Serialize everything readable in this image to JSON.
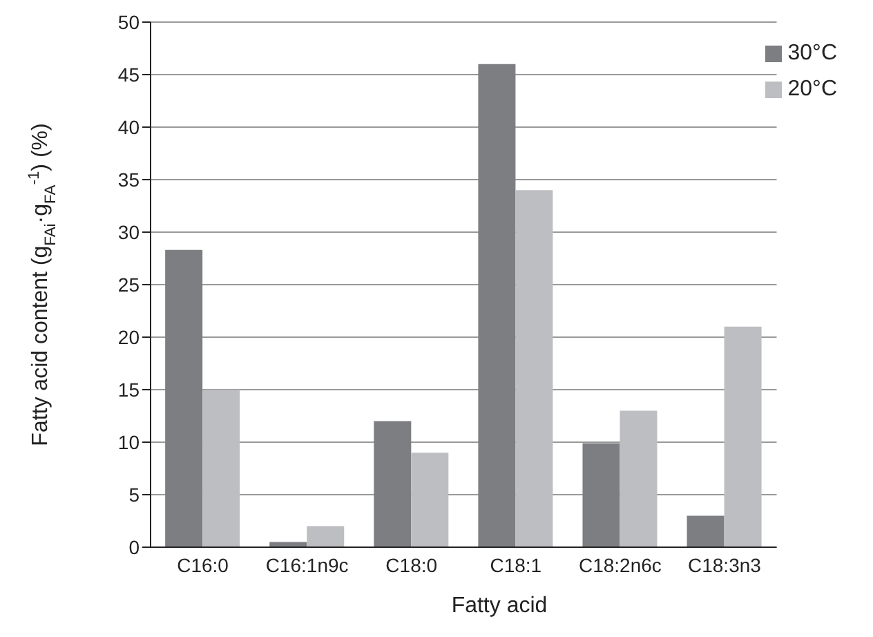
{
  "chart_data": {
    "type": "bar",
    "xlabel": "Fatty acid",
    "ylabel": "Fatty acid content (g$_{FAi}$·g$_{FA}$$^{-1}$) (%)",
    "categories": [
      "C16:0",
      "C16:1n9c",
      "C18:0",
      "C18:1",
      "C18:2n6c",
      "C18:3n3"
    ],
    "series": [
      {
        "name": "30°C",
        "color": "#7d7e82",
        "values": [
          28.3,
          0.5,
          12,
          46,
          9.9,
          3
        ]
      },
      {
        "name": "20°C",
        "color": "#bdbec2",
        "values": [
          15,
          2,
          9,
          34,
          13,
          21
        ]
      }
    ],
    "ylim": [
      0,
      50
    ],
    "yticks": [
      0,
      5,
      10,
      15,
      20,
      25,
      30,
      35,
      40,
      45,
      50
    ],
    "grid": "y",
    "legend": "top right"
  }
}
